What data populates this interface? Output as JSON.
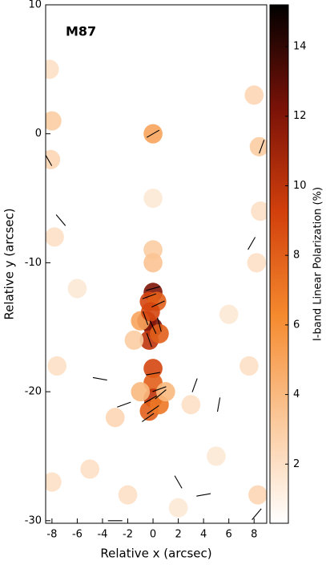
{
  "chart_data": {
    "type": "polarization-map",
    "title": "M87",
    "x_label": "Relative x (arcsec)",
    "y_label": "Relative y (arcsec)",
    "colorbar_label": "I-band Linear Polarization (%)",
    "xlim": [
      -8.5,
      9
    ],
    "ylim": [
      -30.2,
      10
    ],
    "xticks": [
      -8,
      -6,
      -4,
      -2,
      0,
      2,
      4,
      6,
      8
    ],
    "yticks": [
      10,
      0,
      -10,
      -20,
      -30
    ],
    "clim": [
      0.3,
      15.2
    ],
    "cticks": [
      2,
      4,
      6,
      8,
      10,
      12,
      14
    ],
    "colormap": [
      "#ffffff",
      "#fbc89a",
      "#f58a2e",
      "#d2400c",
      "#7a1208",
      "#000000"
    ],
    "vector_color": "#000000",
    "points": {
      "x": [
        0,
        0,
        0,
        0,
        -0.3,
        0.3,
        -0.5,
        0,
        -0.3,
        0.5,
        -1,
        -0.2,
        0,
        0,
        0,
        -0.3,
        0.5,
        -1,
        1,
        -1.5,
        -8.2,
        -8,
        -8.1,
        -7.8,
        8.4,
        8,
        8.5,
        8.2,
        -7.6,
        7.6,
        -3,
        3,
        -5,
        5,
        -8,
        8.3,
        -2,
        2,
        0,
        -6,
        6
      ],
      "y": [
        0,
        -9,
        -10,
        -12.3,
        -13,
        -13,
        -14.5,
        -15,
        -16,
        -15.5,
        -14.5,
        -13.8,
        -18.2,
        -19.3,
        -20.5,
        -21.5,
        -21,
        -20,
        -20,
        -16,
        5,
        1,
        -2,
        -8,
        -1,
        3,
        -6,
        -10,
        -18,
        -18,
        -22,
        -21,
        -26,
        -25,
        -27,
        -28,
        -28,
        -29,
        -5,
        -12,
        -14
      ],
      "values": [
        5,
        3,
        3.5,
        12,
        9,
        8,
        11,
        12,
        10,
        8,
        5,
        9,
        9,
        8,
        10,
        8,
        7,
        4,
        4,
        3,
        2,
        3,
        2.5,
        2,
        3,
        2.5,
        2,
        2,
        2,
        2,
        2.5,
        2,
        2,
        1.5,
        2,
        2.5,
        2,
        1.5,
        1.5,
        1.5,
        1.5
      ]
    },
    "vectors": {
      "x": [
        0,
        0,
        -0.3,
        0.4,
        -0.6,
        0,
        0.5,
        -0.3,
        0,
        0.5,
        -0.2,
        0,
        0.6,
        -0.4,
        -8.3,
        8.6,
        -7.3,
        7.8,
        -4.2,
        -2.3,
        3.3,
        5.2,
        2,
        -3,
        4,
        8.2
      ],
      "y": [
        0,
        -12,
        -12.6,
        -13.2,
        -14.3,
        -15,
        -14.8,
        -16,
        -18.6,
        -19.8,
        -20.6,
        -21.4,
        -20.2,
        -22,
        -2,
        -1,
        -6.7,
        -8.5,
        -19,
        -21,
        -19.5,
        -21,
        -27,
        -30,
        -28,
        -29.5
      ],
      "angle": [
        30,
        15,
        20,
        25,
        -70,
        -65,
        -75,
        -70,
        10,
        20,
        30,
        35,
        40,
        35,
        -60,
        70,
        -50,
        60,
        -10,
        20,
        70,
        80,
        -60,
        0,
        10,
        50
      ]
    }
  }
}
